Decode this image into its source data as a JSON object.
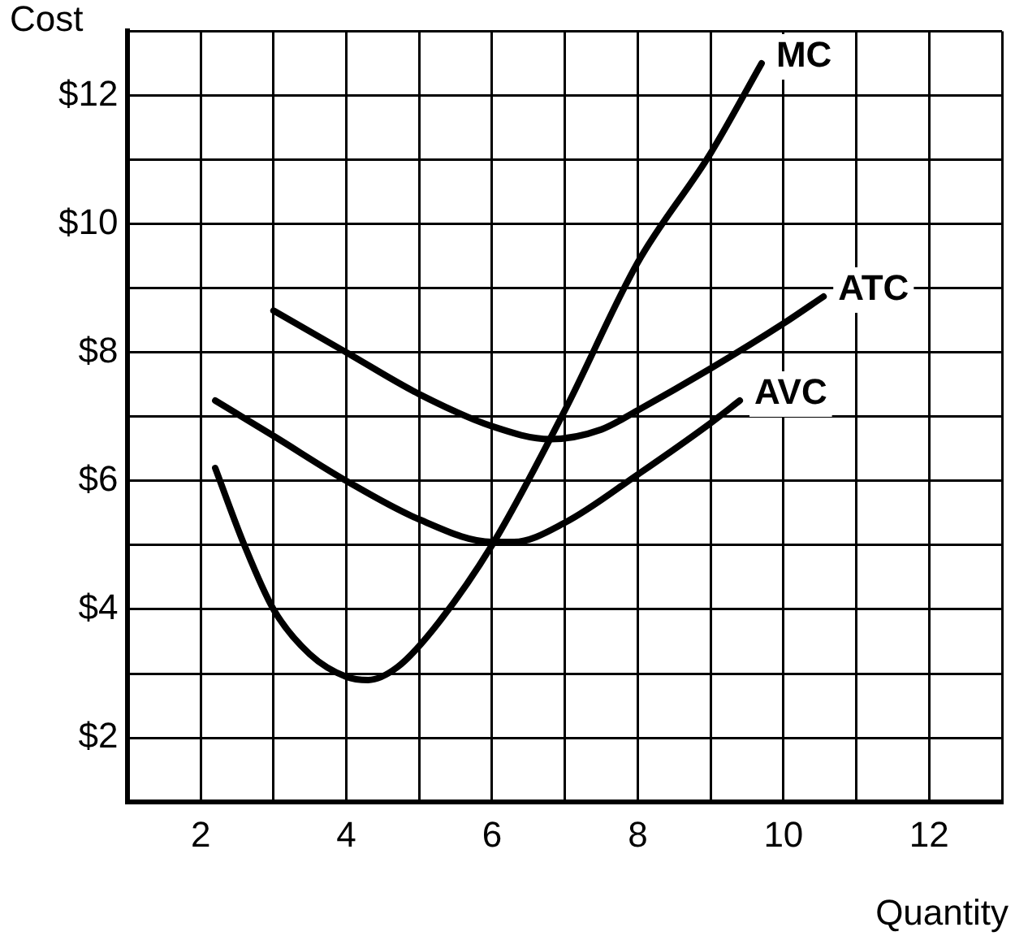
{
  "chart_data": {
    "type": "line",
    "xlabel": "Quantity",
    "ylabel": "Cost",
    "xlim": [
      1,
      13
    ],
    "ylim": [
      1,
      13
    ],
    "xticks": [
      {
        "value": 1,
        "label": null
      },
      2,
      {
        "value": 3,
        "label": null
      },
      4,
      {
        "value": 5,
        "label": null
      },
      6,
      {
        "value": 7,
        "label": null
      },
      8,
      {
        "value": 9,
        "label": null
      },
      10,
      {
        "value": 11,
        "label": null
      },
      12,
      {
        "value": 13,
        "label": null
      }
    ],
    "yticks": [
      {
        "value": 1,
        "label": null
      },
      {
        "value": 2,
        "label": "$2"
      },
      {
        "value": 3,
        "label": null
      },
      {
        "value": 4,
        "label": "$4"
      },
      {
        "value": 5,
        "label": null
      },
      {
        "value": 6,
        "label": "$6"
      },
      {
        "value": 7,
        "label": null
      },
      {
        "value": 8,
        "label": "$8"
      },
      {
        "value": 9,
        "label": null
      },
      {
        "value": 10,
        "label": "$10"
      },
      {
        "value": 11,
        "label": null
      },
      {
        "value": 12,
        "label": "$12"
      },
      {
        "value": 13,
        "label": null
      }
    ],
    "grid": true,
    "legend": false,
    "marker": "none",
    "line_style": "solid",
    "series": [
      {
        "name": "MC",
        "color": "#000000",
        "x": [
          2.2,
          2.6,
          3,
          3.5,
          4,
          4.3,
          4.7,
          5.2,
          6,
          7,
          8,
          9,
          9.7
        ],
        "values": [
          6.2,
          5.0,
          4.0,
          3.3,
          2.95,
          2.9,
          3.1,
          3.7,
          5.0,
          7.1,
          9.4,
          11.1,
          12.5
        ]
      },
      {
        "name": "ATC",
        "color": "#000000",
        "x": [
          3,
          4,
          5,
          6,
          6.8,
          7.5,
          8,
          9,
          10,
          10.55
        ],
        "values": [
          8.65,
          8.0,
          7.35,
          6.85,
          6.65,
          6.8,
          7.1,
          7.75,
          8.45,
          8.87
        ]
      },
      {
        "name": "AVC",
        "color": "#000000",
        "x": [
          2.2,
          3,
          4,
          5,
          6,
          6.3,
          7,
          8,
          9,
          9.4
        ],
        "values": [
          7.25,
          6.7,
          6.0,
          5.4,
          5.05,
          5.05,
          5.35,
          6.1,
          6.9,
          7.25
        ]
      }
    ]
  }
}
